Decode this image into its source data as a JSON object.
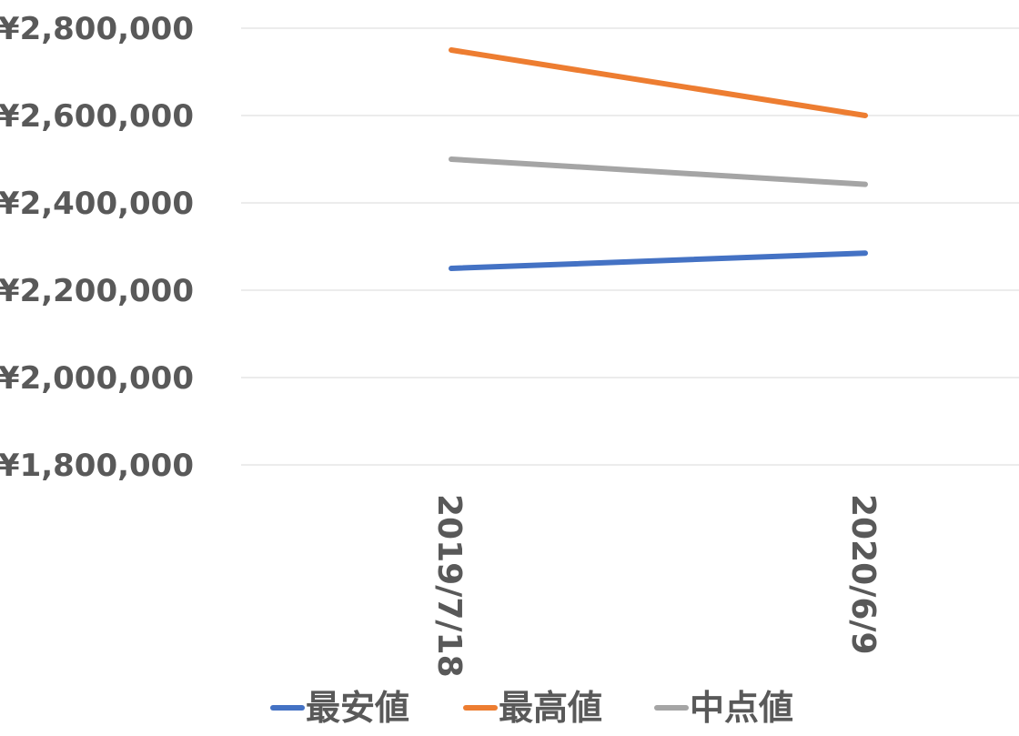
{
  "chart_data": {
    "type": "line",
    "title": "",
    "xlabel": "",
    "ylabel": "",
    "categories": [
      "2019/7/18",
      "2020/6/9"
    ],
    "ylim": [
      1800000,
      2800000
    ],
    "yticks": [
      2800000,
      2600000,
      2400000,
      2200000,
      2000000,
      1800000
    ],
    "ytick_labels": [
      "¥2,800,000",
      "¥2,600,000",
      "¥2,400,000",
      "¥2,200,000",
      "¥2,000,000",
      "¥1,800,000"
    ],
    "grid": true,
    "legend_position": "bottom",
    "series": [
      {
        "name": "最安値",
        "color": "#4472c4",
        "values": [
          2250000,
          2285000
        ]
      },
      {
        "name": "最高値",
        "color": "#ed7d31",
        "values": [
          2750000,
          2600000
        ]
      },
      {
        "name": "中点値",
        "color": "#a5a5a5",
        "values": [
          2500000,
          2442500
        ]
      }
    ]
  }
}
